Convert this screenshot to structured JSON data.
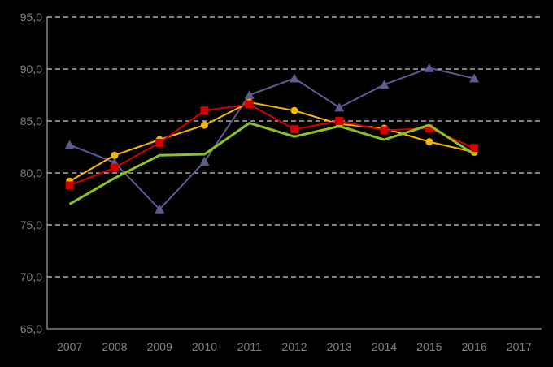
{
  "chart_data": {
    "type": "line",
    "title": "",
    "xlabel": "",
    "ylabel": "",
    "background": "#000000",
    "x": [
      "2007",
      "2008",
      "2009",
      "2010",
      "2011",
      "2012",
      "2013",
      "2014",
      "2015",
      "2016",
      "2017"
    ],
    "y_ticks": [
      "65,0",
      "70,0",
      "75,0",
      "80,0",
      "85,0",
      "90,0",
      "95,0"
    ],
    "ylim": [
      65,
      95
    ],
    "grid": "horizontal dashed",
    "legend": "none",
    "series": [
      {
        "color": "#5b5b8f",
        "marker": "triangle",
        "line_width": 2,
        "values": [
          82.7,
          81.0,
          76.5,
          81.1,
          87.5,
          89.1,
          86.3,
          88.5,
          90.1,
          89.1,
          null
        ]
      },
      {
        "color": "#f5b800",
        "marker": "circle",
        "line_width": 2,
        "values": [
          79.2,
          81.7,
          83.2,
          84.6,
          86.8,
          86.0,
          84.7,
          84.3,
          83.0,
          82.0,
          null
        ]
      },
      {
        "color": "#d40000",
        "marker": "square",
        "line_width": 2,
        "values": [
          78.8,
          80.5,
          82.9,
          86.0,
          86.6,
          84.2,
          85.0,
          84.1,
          84.3,
          82.4,
          null
        ]
      },
      {
        "color": "#8dc21f",
        "marker": "none",
        "line_width": 3,
        "values": [
          77.0,
          79.5,
          81.7,
          81.8,
          84.8,
          83.5,
          84.5,
          83.2,
          84.6,
          81.8,
          null
        ]
      }
    ]
  }
}
